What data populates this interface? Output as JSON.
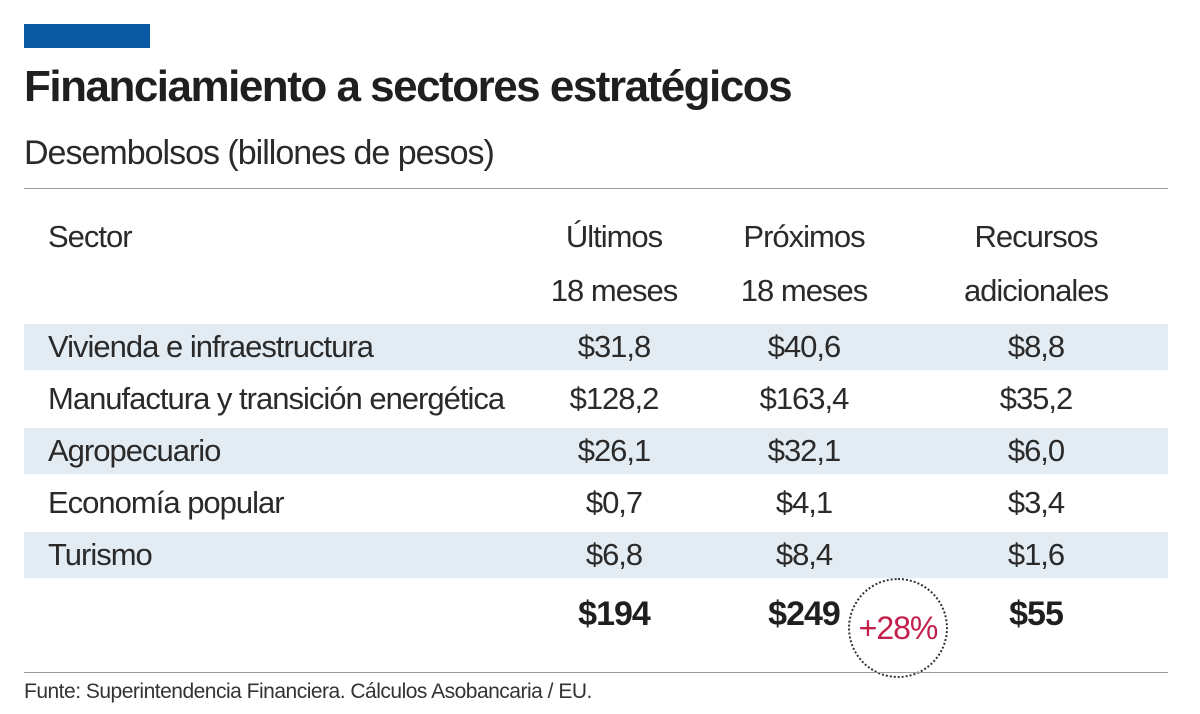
{
  "colors": {
    "accent": "#0a5aa3",
    "row_shade": "#e3ecf3",
    "highlight": "#c21f4a",
    "rule": "#9a9a9a"
  },
  "header": {
    "title": "Financiamiento a sectores estratégicos",
    "subtitle": "Desembolsos  (billones de pesos)"
  },
  "chart_data": {
    "type": "table",
    "title": "Financiamiento a sectores estratégicos",
    "subtitle": "Desembolsos  (billones de pesos)",
    "columns": [
      {
        "lines": [
          "Sector"
        ]
      },
      {
        "lines": [
          "Últimos",
          "18 meses"
        ]
      },
      {
        "lines": [
          "Próximos",
          "18 meses"
        ]
      },
      {
        "lines": [
          "Recursos",
          "adicionales"
        ]
      }
    ],
    "rows": [
      {
        "sector": "Vivienda e infraestructura",
        "ultimos": "$31,8",
        "proximos": "$40,6",
        "adicionales": "$8,8"
      },
      {
        "sector": "Manufactura y transición energética",
        "ultimos": "$128,2",
        "proximos": "$163,4",
        "adicionales": "$35,2"
      },
      {
        "sector": "Agropecuario",
        "ultimos": "$26,1",
        "proximos": "$32,1",
        "adicionales": "$6,0"
      },
      {
        "sector": "Economía popular",
        "ultimos": "$0,7",
        "proximos": "$4,1",
        "adicionales": "$3,4"
      },
      {
        "sector": "Turismo",
        "ultimos": "$6,8",
        "proximos": "$8,4",
        "adicionales": "$1,6"
      }
    ],
    "totals": {
      "ultimos": "$194",
      "proximos": "$249",
      "adicionales": "$55"
    },
    "growth_label": "+28%"
  },
  "footer": {
    "source": "Funte: Superintendencia Financiera. Cálculos Asobancaria / EU."
  }
}
